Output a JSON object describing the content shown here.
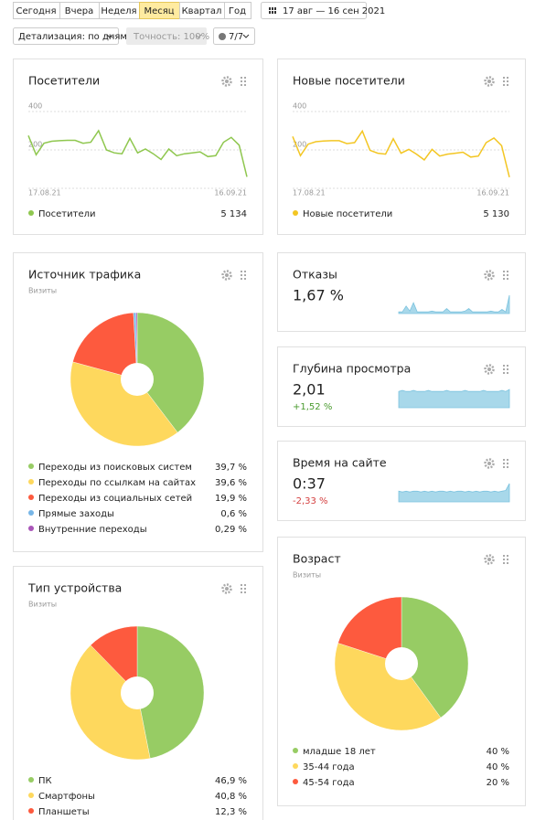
{
  "toolbar": {
    "periods": [
      "Сегодня",
      "Вчера",
      "Неделя",
      "Месяц",
      "Квартал",
      "Год"
    ],
    "selected": "Месяц",
    "date_range": "17 авг — 16 сен 2021",
    "detail": "Детализация: по дням",
    "accuracy": "Точность: 100%",
    "segments": "7/7"
  },
  "widgets": {
    "visitors": {
      "type": "line",
      "title": "Посетители",
      "color": "#8fc74f",
      "ylim": [
        0,
        400
      ],
      "yticks": [
        200,
        400
      ],
      "xlabels": [
        "17.08.21",
        "16.09.21"
      ],
      "values": [
        275,
        175,
        235,
        245,
        248,
        250,
        250,
        235,
        240,
        300,
        200,
        185,
        180,
        260,
        185,
        205,
        180,
        150,
        205,
        170,
        180,
        185,
        190,
        165,
        170,
        240,
        265,
        225,
        60
      ],
      "legend": "Посетители",
      "total": "5 134"
    },
    "new_visitors": {
      "type": "line",
      "title": "Новые посетители",
      "color": "#f3c623",
      "ylim": [
        0,
        400
      ],
      "yticks": [
        200,
        400
      ],
      "xlabels": [
        "17.08.21",
        "16.09.21"
      ],
      "values": [
        270,
        170,
        230,
        243,
        246,
        248,
        248,
        233,
        238,
        298,
        198,
        183,
        178,
        258,
        183,
        203,
        178,
        148,
        203,
        168,
        178,
        183,
        188,
        163,
        168,
        238,
        262,
        222,
        58
      ],
      "legend": "Новые посетители",
      "total": "5 130"
    },
    "traffic": {
      "type": "pie",
      "title": "Источник трафика",
      "subtitle": "Визиты",
      "categories": [
        "Переходы из поисковых систем",
        "Переходы по ссылкам на сайтах",
        "Переходы из социальных сетей",
        "Прямые заходы",
        "Внутренние переходы"
      ],
      "values": [
        39.7,
        39.6,
        19.9,
        0.6,
        0.29
      ],
      "value_labels": [
        "39,7 %",
        "39,6 %",
        "19,9 %",
        "0,6 %",
        "0,29 %"
      ],
      "colors": [
        "#97cc64",
        "#fed85d",
        "#fd5a3e",
        "#77b6e7",
        "#a955b8"
      ]
    },
    "bounce": {
      "type": "metric",
      "title": "Отказы",
      "value": "1,67 %",
      "color": "#a8d8ea",
      "sparkline": [
        2,
        2,
        9,
        3,
        13,
        2,
        2,
        2,
        2,
        3,
        2,
        2,
        2,
        6,
        2,
        2,
        2,
        2,
        3,
        6,
        2,
        2,
        2,
        2,
        2,
        3,
        2,
        2,
        5,
        2,
        22
      ]
    },
    "depth": {
      "type": "metric",
      "title": "Глубина просмотра",
      "value": "2,01",
      "change": "+1,52 %",
      "change_color": "#4a9b2f",
      "color": "#a8d8ea",
      "sparkline": [
        16,
        17,
        16,
        16,
        17,
        16,
        16,
        16,
        17,
        16,
        16,
        16,
        16,
        17,
        16,
        16,
        16,
        16,
        17,
        16,
        16,
        16,
        16,
        17,
        16,
        16,
        16,
        16,
        17,
        16,
        18
      ]
    },
    "time": {
      "type": "metric",
      "title": "Время на сайте",
      "value": "0:37",
      "change": "-2,33 %",
      "change_color": "#d43f3f",
      "color": "#a8d8ea",
      "sparkline": [
        14,
        13,
        14,
        13,
        14,
        14,
        13,
        14,
        13,
        14,
        13,
        14,
        14,
        13,
        14,
        13,
        14,
        14,
        13,
        14,
        13,
        14,
        13,
        14,
        14,
        13,
        14,
        13,
        14,
        15,
        24
      ]
    },
    "age": {
      "type": "pie",
      "title": "Возраст",
      "subtitle": "Визиты",
      "categories": [
        "младше 18 лет",
        "35-44 года",
        "45-54 года"
      ],
      "values": [
        40,
        40,
        20
      ],
      "value_labels": [
        "40 %",
        "40 %",
        "20 %"
      ],
      "colors": [
        "#97cc64",
        "#fed85d",
        "#fd5a3e"
      ]
    },
    "device": {
      "type": "pie",
      "title": "Тип устройства",
      "subtitle": "Визиты",
      "categories": [
        "ПК",
        "Смартфоны",
        "Планшеты"
      ],
      "values": [
        46.9,
        40.8,
        12.3
      ],
      "value_labels": [
        "46,9 %",
        "40,8 %",
        "12,3 %"
      ],
      "colors": [
        "#97cc64",
        "#fed85d",
        "#fd5a3e"
      ]
    }
  }
}
